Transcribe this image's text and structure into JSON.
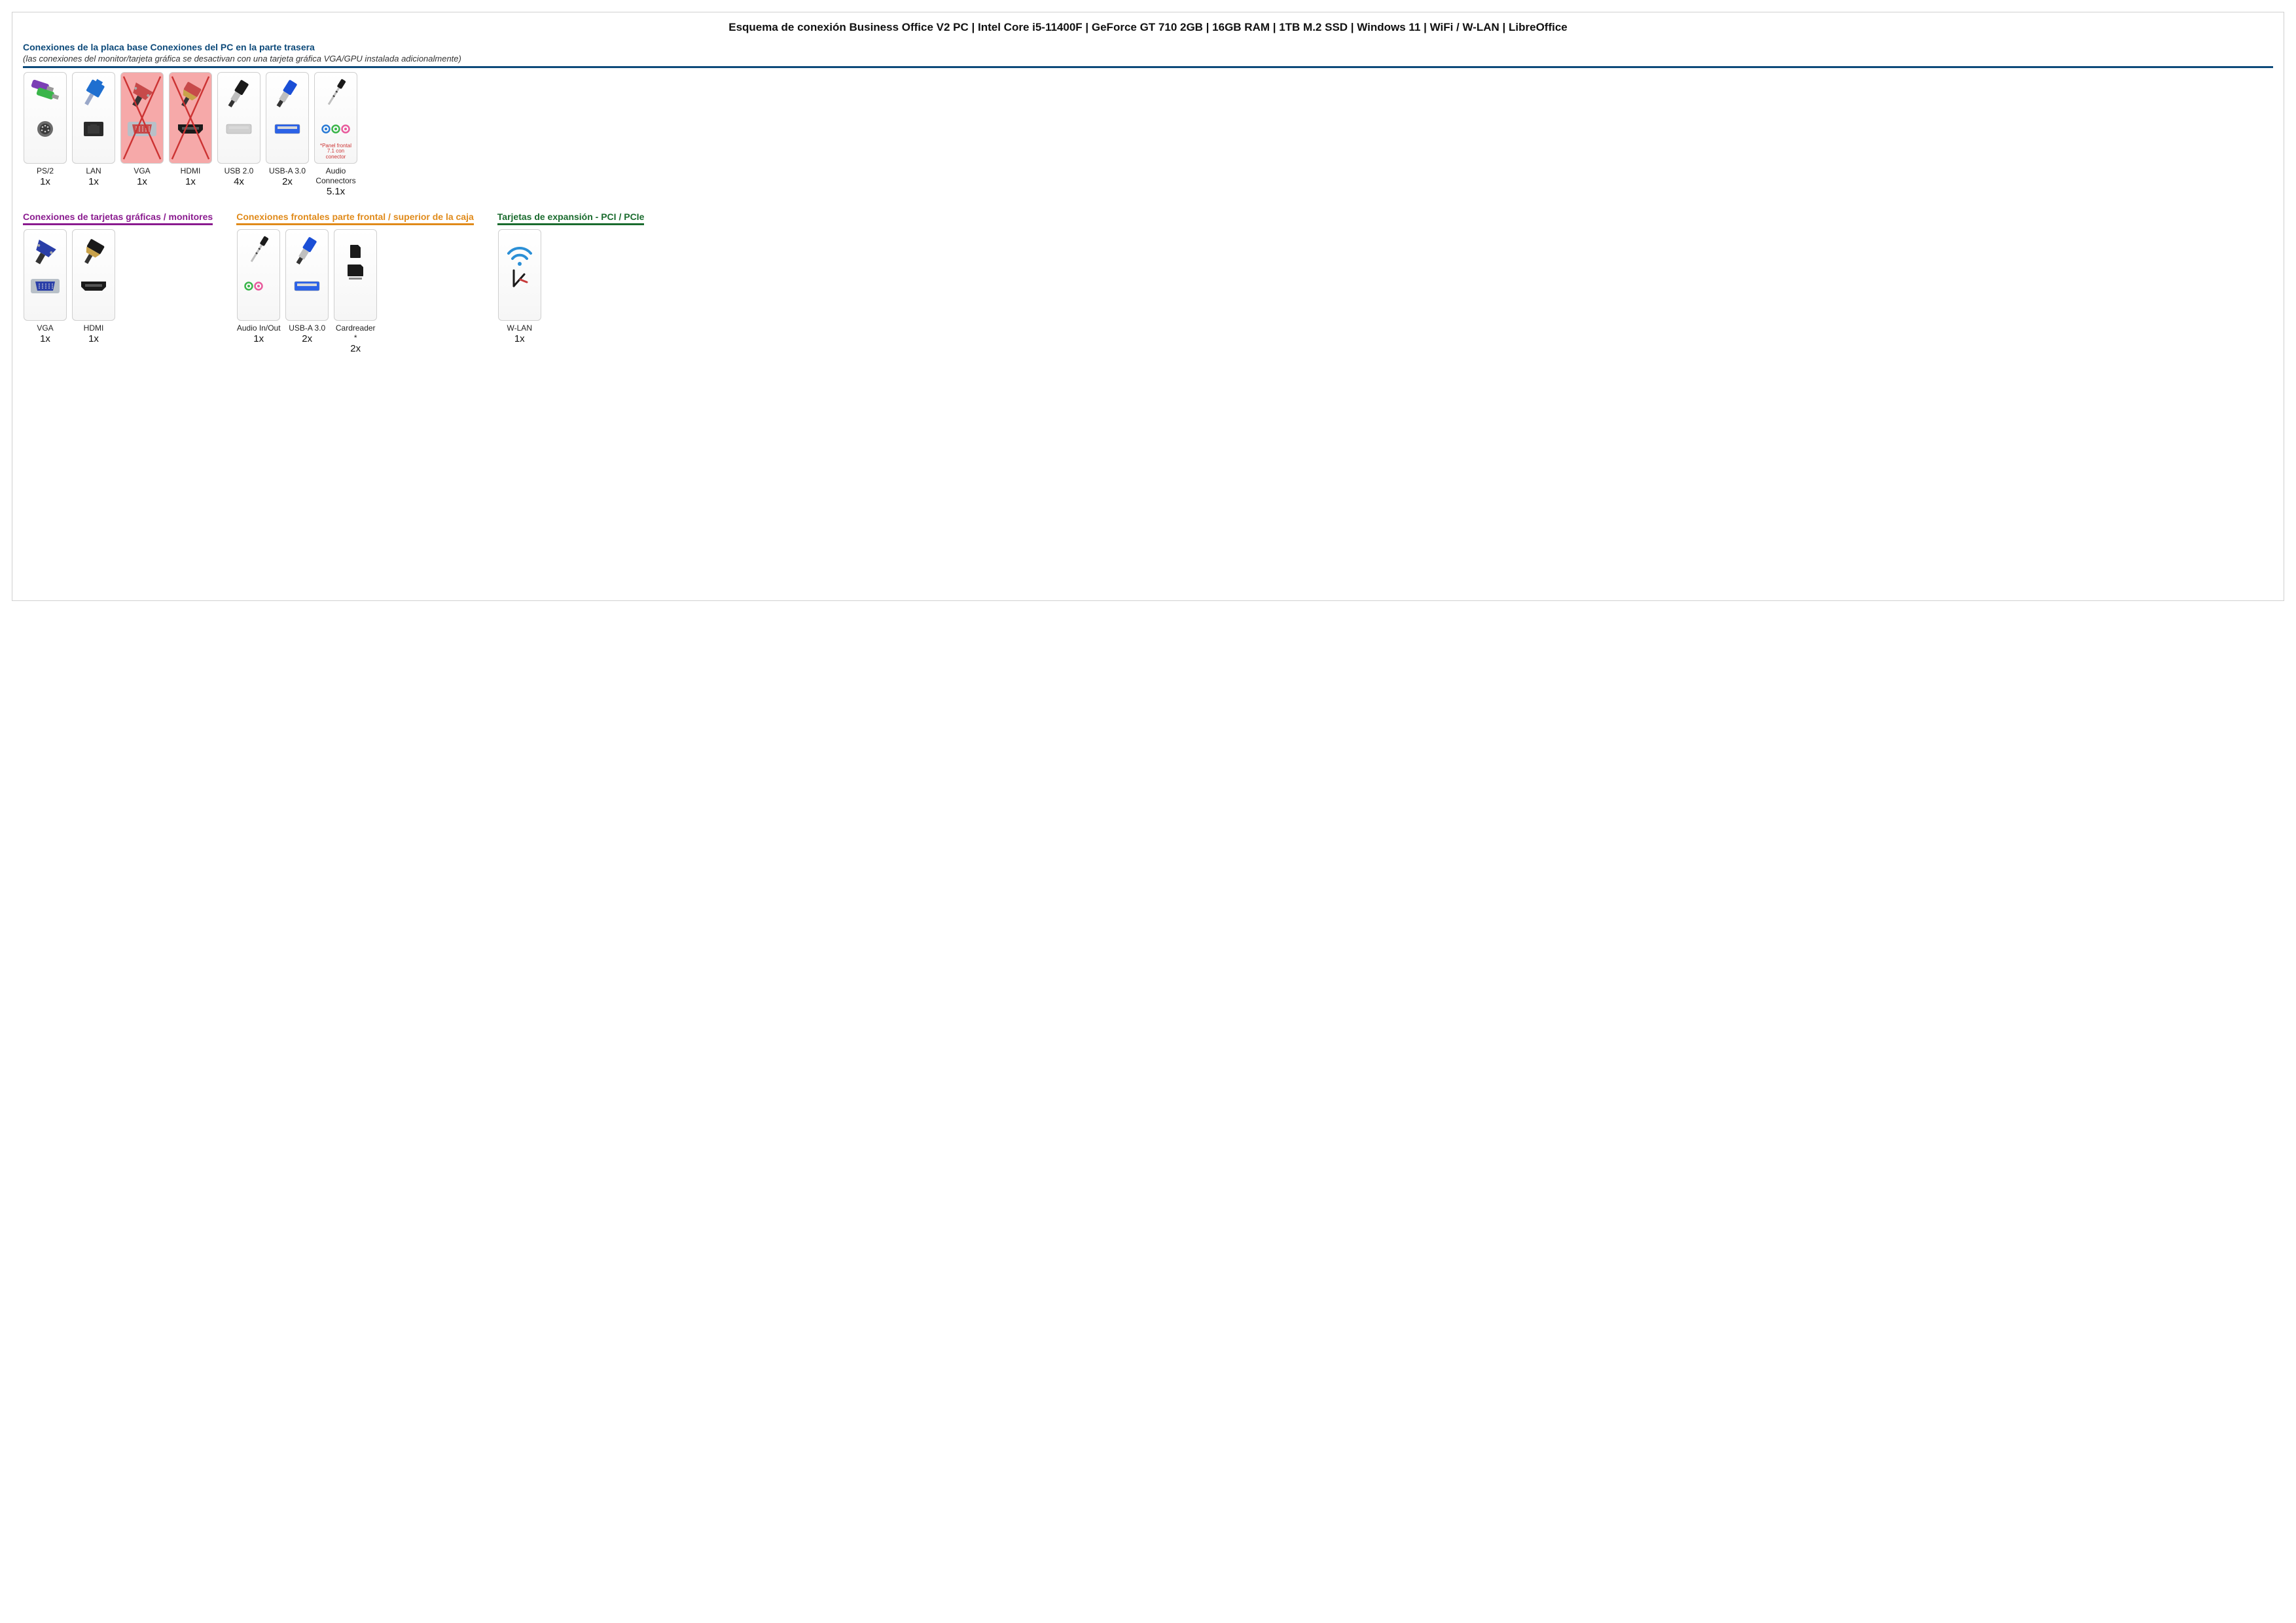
{
  "page": {
    "title": "Esquema de conexión Business Office V2 PC | Intel Core i5-11400F | GeForce GT 710 2GB | 16GB RAM | 1TB M.2 SSD | Windows 11 | WiFi / W-LAN | LibreOffice",
    "border_color": "#d0d0d0",
    "background": "#ffffff"
  },
  "styles": {
    "card_border": "#cfcfcf",
    "card_bg_top": "#ffffff",
    "card_bg_bottom": "#f6f6f6",
    "disabled_bg": "#f6a9a9",
    "disabled_x_color": "#cc3333",
    "note_color": "#cc3333",
    "label_color": "#222222",
    "count_color": "#111111"
  },
  "sections": [
    {
      "id": "mobo",
      "heading": "Conexiones de la placa base Conexiones del PC en la parte trasera",
      "subheading": "(las conexiones del monitor/tarjeta gráfica se desactivan con una tarjeta gráfica VGA/GPU instalada adicionalmente)",
      "heading_color": "#0d4a7a",
      "rule_color": "#0d4a7a",
      "cards": [
        {
          "icon": "ps2",
          "label": "PS/2",
          "count": "1x",
          "disabled": false
        },
        {
          "icon": "lan",
          "label": "LAN",
          "count": "1x",
          "disabled": false
        },
        {
          "icon": "vga-disabled",
          "label": "VGA",
          "count": "1x",
          "disabled": true
        },
        {
          "icon": "hdmi-disabled",
          "label": "HDMI",
          "count": "1x",
          "disabled": true
        },
        {
          "icon": "usb2",
          "label": "USB 2.0",
          "count": "4x",
          "disabled": false
        },
        {
          "icon": "usb3",
          "label": "USB-A 3.0",
          "count": "2x",
          "disabled": false
        },
        {
          "icon": "audio-rear",
          "label": "Audio Connectors",
          "count": "5.1x",
          "disabled": false,
          "note": "*Panel frontal 7.1 con conector"
        }
      ]
    },
    {
      "id": "gpu",
      "heading": "Conexiones de tarjetas gráficas / monitores",
      "heading_color": "#8a1b8f",
      "rule_color": "#8a1b8f",
      "cards": [
        {
          "icon": "vga",
          "label": "VGA",
          "count": "1x",
          "disabled": false
        },
        {
          "icon": "hdmi",
          "label": "HDMI",
          "count": "1x",
          "disabled": false
        }
      ]
    },
    {
      "id": "front",
      "heading": "Conexiones frontales parte frontal / superior de la caja",
      "heading_color": "#e08a1a",
      "rule_color": "#e08a1a",
      "cards": [
        {
          "icon": "audio-front",
          "label": "Audio In/Out",
          "count": "1x",
          "disabled": false
        },
        {
          "icon": "usb3",
          "label": "USB-A 3.0",
          "count": "2x",
          "disabled": false
        },
        {
          "icon": "cardreader",
          "label": "Cardreader *",
          "count": "2x",
          "disabled": false
        }
      ]
    },
    {
      "id": "pci",
      "heading": "Tarjetas de expansión - PCI / PCIe",
      "heading_color": "#1a6b2e",
      "rule_color": "#1a6b2e",
      "cards": [
        {
          "icon": "wlan",
          "label": "W-LAN",
          "count": "1x",
          "disabled": false
        }
      ]
    }
  ],
  "icon_colors": {
    "ps2_plug_purple": "#7b3fb5",
    "ps2_plug_green": "#3ab54a",
    "ps2_port": "#6b6b6b",
    "lan_plug": "#1f6fd0",
    "lan_port": "#2a2a2a",
    "vga_plug": "#2a3fa8",
    "vga_port": "#b8c0c8",
    "hdmi_plug": "#1a1a1a",
    "hdmi_port": "#1a1a1a",
    "usb2_plug": "#1a1a1a",
    "usb2_port": "#d0d0d0",
    "usb3_plug": "#1b4fd6",
    "usb3_port": "#2b62e8",
    "usb_inner": "#d9d9d9",
    "audio_jack": "#1a1a1a",
    "audio_blue": "#2b7bd6",
    "audio_green": "#3ab54a",
    "audio_pink": "#e85a9c",
    "sd_card": "#1a1a1a",
    "wifi_wave": "#2b8fd6",
    "wifi_ant": "#1a1a1a",
    "wifi_ant_red": "#c73a3a",
    "disabled_tint": "#c74a4a"
  }
}
